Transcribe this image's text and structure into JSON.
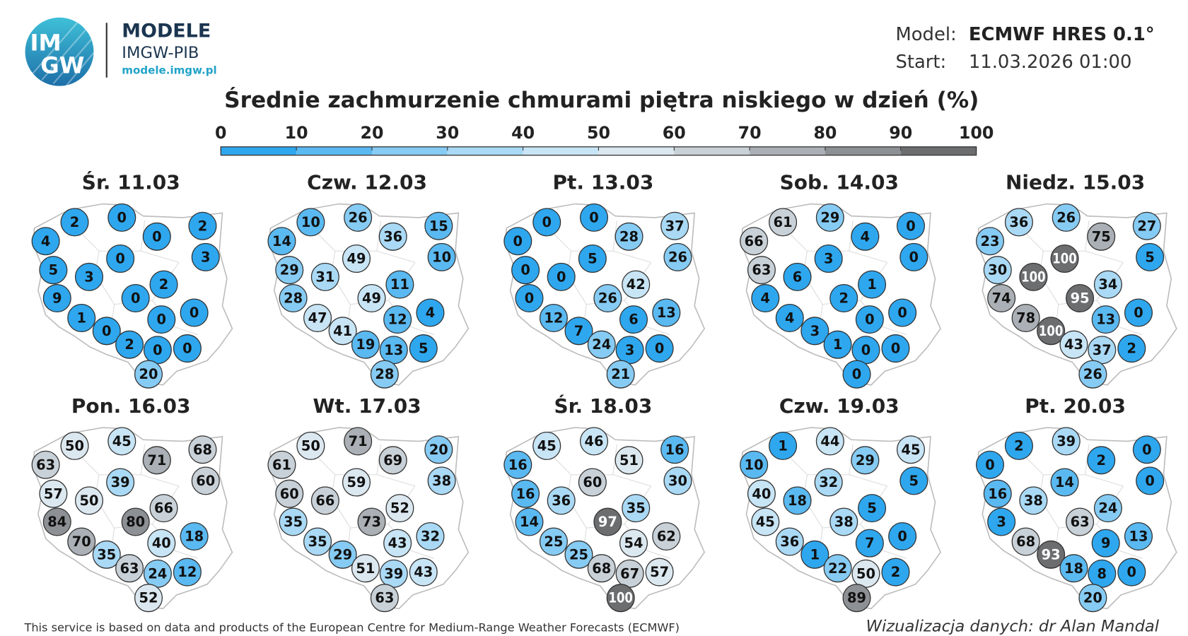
{
  "header": {
    "logo_top": "IM",
    "logo_bottom": "GW",
    "brand": "MODELE",
    "org": "IMGW-PIB",
    "url": "modele.imgw.pl",
    "model_label": "Model:",
    "model": "ECMWF HRES 0.1°",
    "start_label": "Start:",
    "start": "11.03.2026 01:00"
  },
  "title": "Średnie zachmurzenie chmurami piętra niskiego w dzień (%)",
  "legend": {
    "ticks": [
      0,
      10,
      20,
      30,
      40,
      50,
      60,
      70,
      80,
      90,
      100
    ],
    "colors": [
      "#2ea7ef",
      "#5ab9f1",
      "#86cbf3",
      "#a9d9f5",
      "#c8e5f6",
      "#dce8f0",
      "#c9d1d8",
      "#aab0b5",
      "#8d9094",
      "#6c6d6f"
    ]
  },
  "days": [
    {
      "label": "Śr. 11.03",
      "values": [
        4,
        2,
        0,
        0,
        2,
        3,
        5,
        3,
        0,
        2,
        9,
        0,
        1,
        0,
        0,
        0,
        2,
        0,
        0,
        20
      ]
    },
    {
      "label": "Czw. 12.03",
      "values": [
        14,
        10,
        26,
        36,
        15,
        10,
        29,
        31,
        49,
        11,
        28,
        49,
        47,
        12,
        4,
        41,
        19,
        13,
        5,
        28
      ]
    },
    {
      "label": "Pt. 13.03",
      "values": [
        0,
        0,
        0,
        28,
        37,
        26,
        0,
        0,
        5,
        42,
        0,
        26,
        12,
        6,
        13,
        7,
        24,
        3,
        0,
        21
      ]
    },
    {
      "label": "Sob. 14.03",
      "values": [
        66,
        61,
        29,
        4,
        0,
        0,
        63,
        6,
        3,
        1,
        4,
        2,
        4,
        0,
        0,
        3,
        1,
        0,
        0,
        0
      ]
    },
    {
      "label": "Niedz. 15.03",
      "values": [
        23,
        36,
        26,
        75,
        27,
        5,
        30,
        100,
        100,
        34,
        74,
        95,
        78,
        13,
        0,
        100,
        43,
        37,
        2,
        26
      ]
    },
    {
      "label": "Pon. 16.03",
      "values": [
        63,
        50,
        45,
        71,
        68,
        60,
        57,
        50,
        39,
        66,
        84,
        80,
        70,
        40,
        18,
        35,
        63,
        24,
        12,
        52
      ]
    },
    {
      "label": "Wt. 17.03",
      "values": [
        61,
        50,
        71,
        69,
        20,
        38,
        60,
        66,
        59,
        52,
        35,
        73,
        35,
        43,
        32,
        29,
        51,
        39,
        43,
        63
      ]
    },
    {
      "label": "Śr. 18.03",
      "values": [
        16,
        45,
        46,
        51,
        16,
        30,
        16,
        36,
        60,
        35,
        14,
        97,
        25,
        54,
        62,
        25,
        68,
        67,
        57,
        100
      ]
    },
    {
      "label": "Czw. 19.03",
      "values": [
        10,
        1,
        44,
        29,
        45,
        5,
        40,
        18,
        32,
        5,
        45,
        38,
        36,
        7,
        0,
        1,
        22,
        50,
        2,
        89
      ]
    },
    {
      "label": "Pt. 20.03",
      "values": [
        0,
        2,
        39,
        2,
        0,
        0,
        16,
        38,
        14,
        24,
        3,
        63,
        68,
        9,
        13,
        93,
        18,
        8,
        0,
        20
      ]
    }
  ],
  "footer": {
    "source": "This service is based on data and products of the European Centre for Medium-Range Weather Forecasts (ECMWF)",
    "credit": "Wizualizacja danych: dr Alan Mandal"
  }
}
